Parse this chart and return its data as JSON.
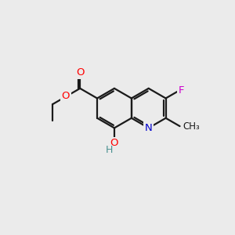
{
  "bg_color": "#ebebeb",
  "bond_color": "#1a1a1a",
  "bond_width": 1.6,
  "atom_colors": {
    "O": "#ff0000",
    "N": "#0000cc",
    "F": "#cc00cc",
    "H_teal": "#4a9090",
    "C": "#1a1a1a"
  },
  "fig_size": [
    3.0,
    3.0
  ],
  "dpi": 100,
  "BL": 0.85,
  "mid_jx": 5.6,
  "mid_jy": 5.4
}
